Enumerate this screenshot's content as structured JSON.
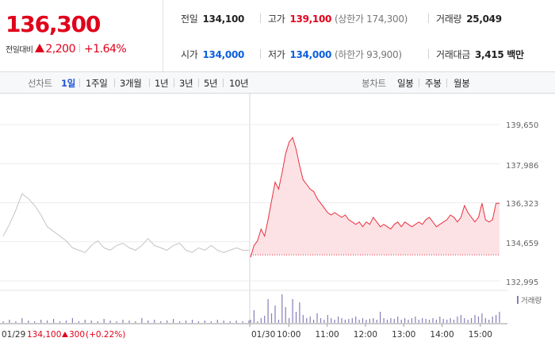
{
  "quote": {
    "price": "136,300",
    "change_label": "전일대비",
    "change_value": "2,200",
    "change_pct": "+1.64%",
    "stats": {
      "prev_close": {
        "label": "전일",
        "value": "134,100"
      },
      "high": {
        "label": "고가",
        "value": "139,100",
        "limit": "(상한가 174,300)"
      },
      "volume": {
        "label": "거래량",
        "value": "25,049"
      },
      "open": {
        "label": "시가",
        "value": "134,000"
      },
      "low": {
        "label": "저가",
        "value": "134,000",
        "limit": "(하한가 93,900)"
      },
      "amount": {
        "label": "거래대금",
        "value": "3,415 백만"
      }
    }
  },
  "toolbar": {
    "line_title": "선차트",
    "periods": [
      "1일",
      "1주일",
      "3개월",
      "1년",
      "3년",
      "5년",
      "10년"
    ],
    "active_period": "1일",
    "candle_title": "봉차트",
    "candles": [
      "일봉",
      "주봉",
      "월봉"
    ]
  },
  "chart_data": {
    "type": "line",
    "y_ticks": [
      "139,650",
      "137,986",
      "136,323",
      "134,659",
      "132,995"
    ],
    "ylim": [
      132995,
      139650
    ],
    "reference_price": 134100,
    "prev_day_label": "01/29",
    "prev_day_close": "134,100",
    "prev_day_change": "300",
    "prev_day_pct": "(+0.22%)",
    "today_label": "01/30",
    "time_labels": [
      "10:00",
      "11:00",
      "12:00",
      "13:00",
      "14:00",
      "15:00"
    ],
    "volume_legend": "거래량",
    "prev_day_series": [
      134900,
      135400,
      136000,
      136700,
      136500,
      136200,
      135800,
      135300,
      135100,
      134900,
      134700,
      134400,
      134300,
      134200,
      134500,
      134700,
      134400,
      134300,
      134500,
      134600,
      134400,
      134300,
      134500,
      134800,
      134500,
      134400,
      134300,
      134500,
      134600,
      134300,
      134200,
      134400,
      134300,
      134500,
      134300,
      134200,
      134300,
      134400,
      134300,
      134300
    ],
    "today_series": [
      134000,
      134500,
      134700,
      135200,
      134900,
      135600,
      136400,
      137200,
      136900,
      137600,
      138400,
      138900,
      139100,
      138600,
      137900,
      137300,
      137100,
      136900,
      136800,
      136500,
      136300,
      136100,
      135900,
      135800,
      135900,
      135800,
      135700,
      135800,
      135600,
      135500,
      135400,
      135500,
      135300,
      135500,
      135400,
      135700,
      135500,
      135300,
      135400,
      135300,
      135200,
      135400,
      135500,
      135300,
      135500,
      135400,
      135300,
      135400,
      135500,
      135400,
      135600,
      135700,
      135500,
      135300,
      135400,
      135500,
      135600,
      135800,
      135700,
      135500,
      135700,
      136200,
      135900,
      135700,
      135500,
      135700,
      136300,
      135600,
      135500,
      135600,
      136300,
      136300
    ],
    "today_volume": [
      4,
      16,
      2,
      6,
      9,
      30,
      12,
      22,
      4,
      36,
      20,
      6,
      30,
      14,
      26,
      10,
      6,
      8,
      4,
      12,
      6,
      4,
      10,
      6,
      4,
      8,
      6,
      4,
      5,
      6,
      8,
      4,
      6,
      4,
      5,
      6,
      4,
      14,
      6,
      4,
      6,
      5,
      8,
      4,
      6,
      4,
      6,
      8,
      4,
      6,
      5,
      4,
      6,
      4,
      8,
      5,
      4,
      6,
      4,
      8,
      10,
      6,
      4,
      6,
      10,
      8,
      12,
      6,
      4,
      8,
      10,
      14
    ],
    "prev_day_volume": [
      2,
      4,
      2,
      6,
      3,
      2,
      4,
      3,
      5,
      2,
      3,
      6,
      2,
      4,
      3,
      2,
      5,
      3,
      2,
      4,
      3,
      2,
      6,
      3,
      4,
      2,
      3,
      5,
      2,
      3,
      4,
      2,
      3,
      2,
      4,
      3,
      2,
      3,
      2,
      3
    ]
  },
  "colors": {
    "up": "#e0001b",
    "down": "#0b5ee0",
    "line_today": "#e8303e",
    "fill_today": "#fde2e5",
    "line_prev": "#c4c4c4",
    "volume": "#8a7bb8",
    "active_tab": "#1f55d6"
  }
}
